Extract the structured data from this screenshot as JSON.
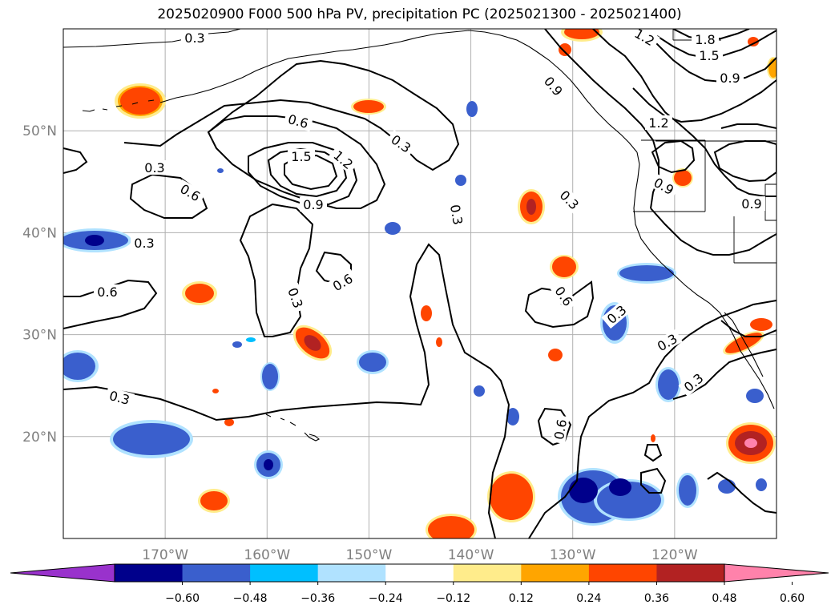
{
  "title": "2025020900 F000 500 hPa PV, precipitation PC (2025021300 - 2025021400)",
  "map": {
    "lon_range": [
      -180,
      -110
    ],
    "lat_range": [
      10,
      60
    ],
    "lat_ticks": [
      {
        "value": 50,
        "label": "50°N"
      },
      {
        "value": 40,
        "label": "40°N"
      },
      {
        "value": 30,
        "label": "30°N"
      },
      {
        "value": 20,
        "label": "20°N"
      }
    ],
    "lon_ticks": [
      {
        "value": -170,
        "label": "170°W"
      },
      {
        "value": -160,
        "label": "160°W"
      },
      {
        "value": -150,
        "label": "150°W"
      },
      {
        "value": -140,
        "label": "140°W"
      },
      {
        "value": -130,
        "label": "130°W"
      },
      {
        "value": -120,
        "label": "120°W"
      }
    ],
    "gridlines": true,
    "contour_labels": [
      "0.3",
      "0.3",
      "0.3",
      "0.3",
      "0.3",
      "0.3",
      "0.3",
      "0.3",
      "0.3",
      "0.3",
      "0.3",
      "0.6",
      "0.6",
      "0.6",
      "0.6",
      "0.6",
      "0.6",
      "0.9",
      "0.9",
      "0.9",
      "0.9",
      "0.9",
      "1.2",
      "1.2",
      "1.2",
      "1.5",
      "1.5",
      "1.8"
    ]
  },
  "colorbar": {
    "colors": [
      "#9932cc",
      "#00008b",
      "#3a5fcd",
      "#00bfff",
      "#b0e2ff",
      "#ffffff",
      "#ffec8b",
      "#ffa500",
      "#ff4500",
      "#b22222",
      "#ff82ab"
    ],
    "tick_labels": [
      "−0.60",
      "−0.48",
      "−0.36",
      "−0.24",
      "−0.12",
      "0.12",
      "0.24",
      "0.36",
      "0.48",
      "0.60"
    ]
  }
}
